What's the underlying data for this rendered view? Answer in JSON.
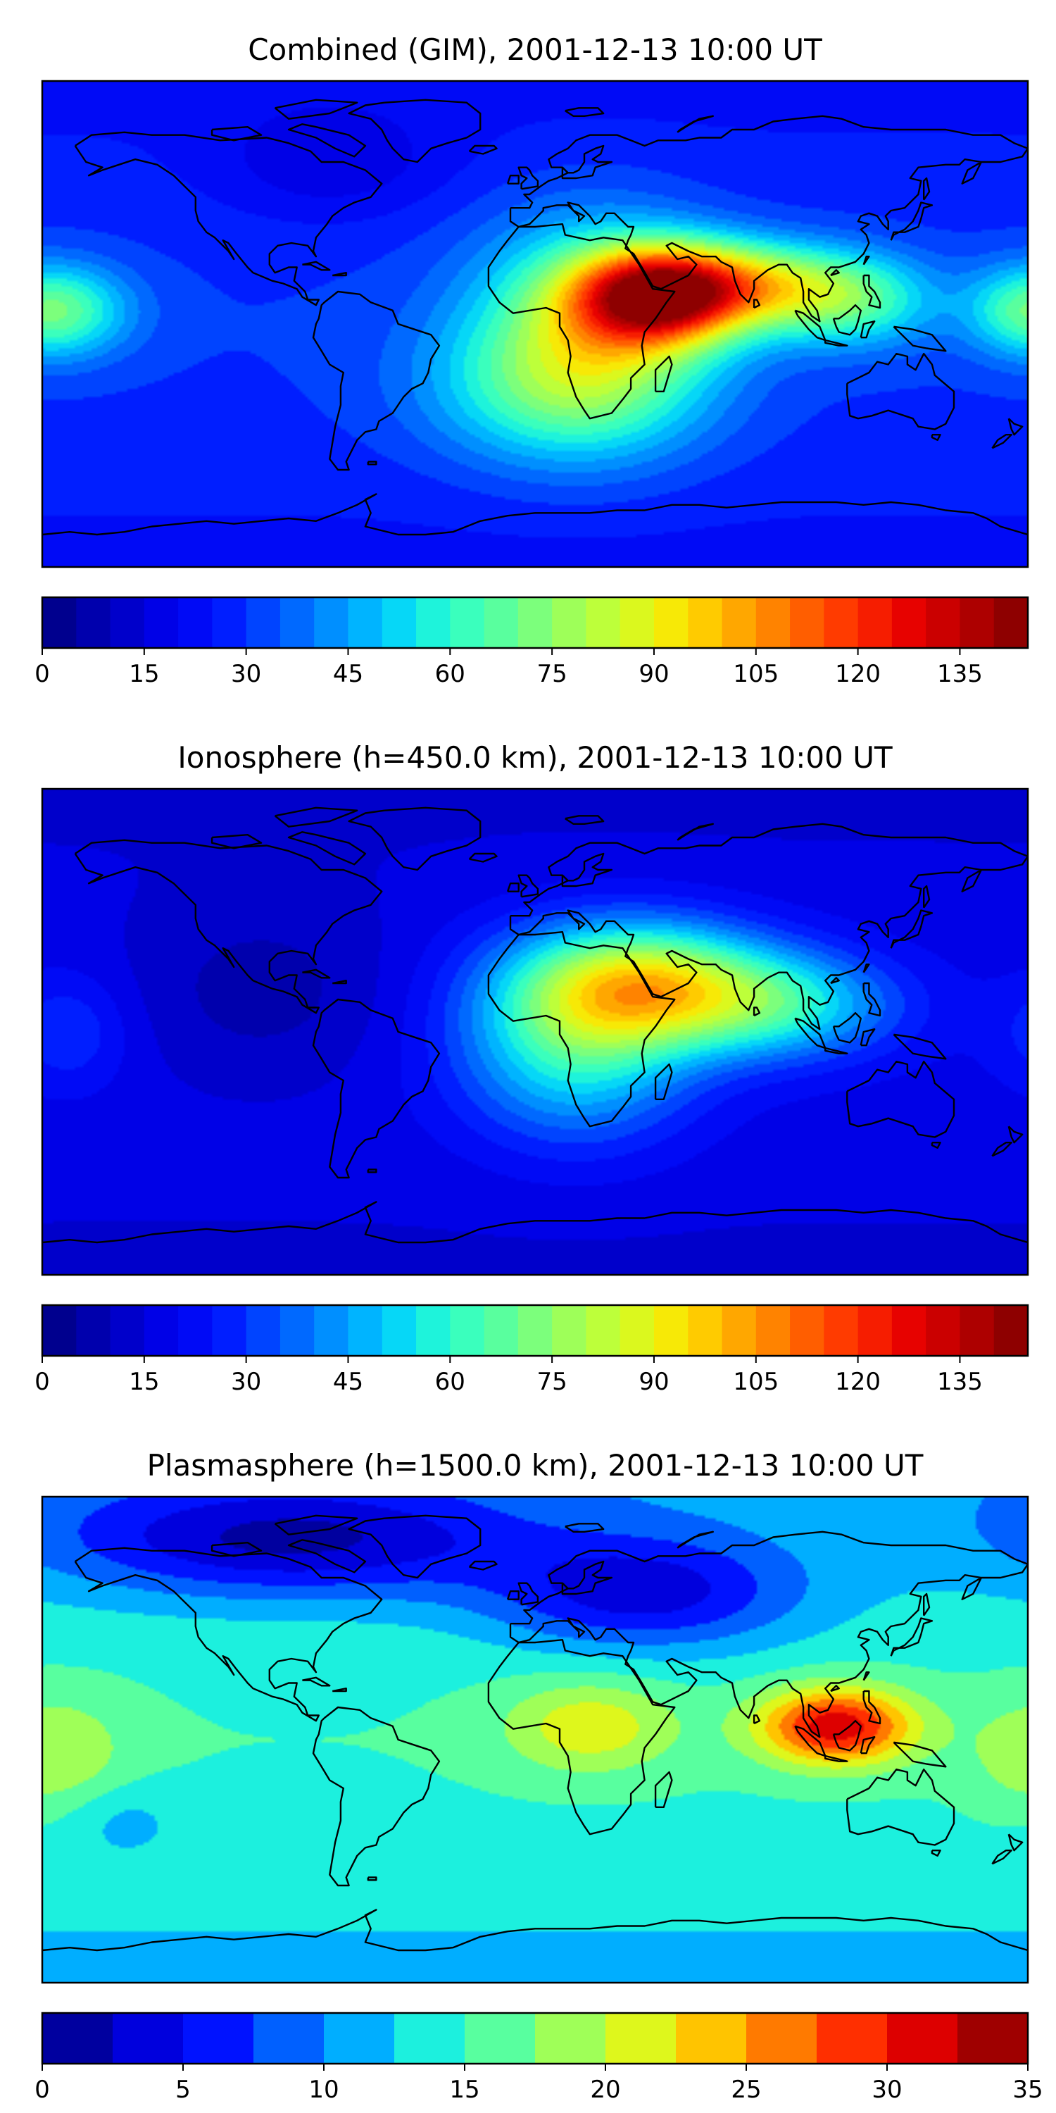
{
  "panels": [
    {
      "title": "Combined (GIM), 2001-12-13 10:00 UT",
      "colorbar": {
        "min": 0,
        "max": 145,
        "levels": 29,
        "ticks": [
          0,
          15,
          30,
          45,
          60,
          75,
          90,
          105,
          120,
          135
        ],
        "tick_labels": [
          "0",
          "15",
          "30",
          "45",
          "60",
          "75",
          "90",
          "105",
          "120",
          "135"
        ]
      },
      "field": {
        "background": 30,
        "sources": [
          {
            "lon": 45,
            "lat": 10,
            "amp": 80,
            "slon": 22,
            "slat": 13
          },
          {
            "lon": 75,
            "lat": 15,
            "amp": 50,
            "slon": 30,
            "slat": 11
          },
          {
            "lon": 115,
            "lat": 8,
            "amp": 30,
            "slon": 22,
            "slat": 12
          },
          {
            "lon": 20,
            "lat": 0,
            "amp": 40,
            "slon": 30,
            "slat": 28
          },
          {
            "lon": 10,
            "lat": -25,
            "amp": 28,
            "slon": 35,
            "slat": 20
          },
          {
            "lon": -170,
            "lat": 5,
            "amp": 25,
            "slon": 18,
            "slat": 12
          },
          {
            "lon": 178,
            "lat": 5,
            "amp": 20,
            "slon": 15,
            "slat": 12
          },
          {
            "lon": -75,
            "lat": 60,
            "amp": -12,
            "slon": 30,
            "slat": 15
          }
        ]
      }
    },
    {
      "title": "Ionosphere  (h=450.0 km), 2001-12-13 10:00 UT",
      "colorbar": {
        "min": 0,
        "max": 145,
        "levels": 29,
        "ticks": [
          0,
          15,
          30,
          45,
          60,
          75,
          90,
          105,
          120,
          135
        ],
        "tick_labels": [
          "0",
          "15",
          "30",
          "45",
          "60",
          "75",
          "90",
          "105",
          "120",
          "135"
        ]
      },
      "field": {
        "background": 18,
        "sources": [
          {
            "lon": 40,
            "lat": 18,
            "amp": 62,
            "slon": 32,
            "slat": 16
          },
          {
            "lon": 15,
            "lat": -5,
            "amp": 40,
            "slon": 30,
            "slat": 25
          },
          {
            "lon": 90,
            "lat": 10,
            "amp": 35,
            "slon": 30,
            "slat": 14
          },
          {
            "lon": -100,
            "lat": 15,
            "amp": -10,
            "slon": 35,
            "slat": 25
          },
          {
            "lon": -170,
            "lat": 0,
            "amp": 12,
            "slon": 15,
            "slat": 15
          }
        ]
      }
    },
    {
      "title": "Plasmasphere (h=1500.0 km), 2001-12-13 10:00 UT",
      "colorbar": {
        "min": 0,
        "max": 35,
        "levels": 14,
        "ticks": [
          0,
          5,
          10,
          15,
          20,
          25,
          30,
          35
        ],
        "tick_labels": [
          "0",
          "5",
          "10",
          "15",
          "20",
          "25",
          "30",
          "35"
        ]
      },
      "field": {
        "background": 15,
        "sources": [
          {
            "lon": 110,
            "lat": 5,
            "amp": 17,
            "slon": 20,
            "slat": 10
          },
          {
            "lon": 20,
            "lat": 5,
            "amp": 7,
            "slon": 22,
            "slat": 12
          },
          {
            "lon": -175,
            "lat": -5,
            "amp": 5,
            "slon": 18,
            "slat": 15
          },
          {
            "lon": -90,
            "lat": 75,
            "amp": -13,
            "slon": 60,
            "slat": 15
          },
          {
            "lon": 40,
            "lat": 55,
            "amp": -11,
            "slon": 40,
            "slat": 15
          },
          {
            "lon": -150,
            "lat": -30,
            "amp": -3,
            "slon": 15,
            "slat": 10
          }
        ]
      }
    }
  ],
  "colormap": [
    "#00007f",
    "#0000b3",
    "#0000e6",
    "#0010ff",
    "#0050ff",
    "#0090ff",
    "#00d0ff",
    "#29ffce",
    "#5eff99",
    "#99ff5e",
    "#ceff29",
    "#ffe500",
    "#ffa800",
    "#ff6a00",
    "#ff2d00",
    "#e60000",
    "#b30000",
    "#7f0000"
  ],
  "coastline_color": "#000000"
}
